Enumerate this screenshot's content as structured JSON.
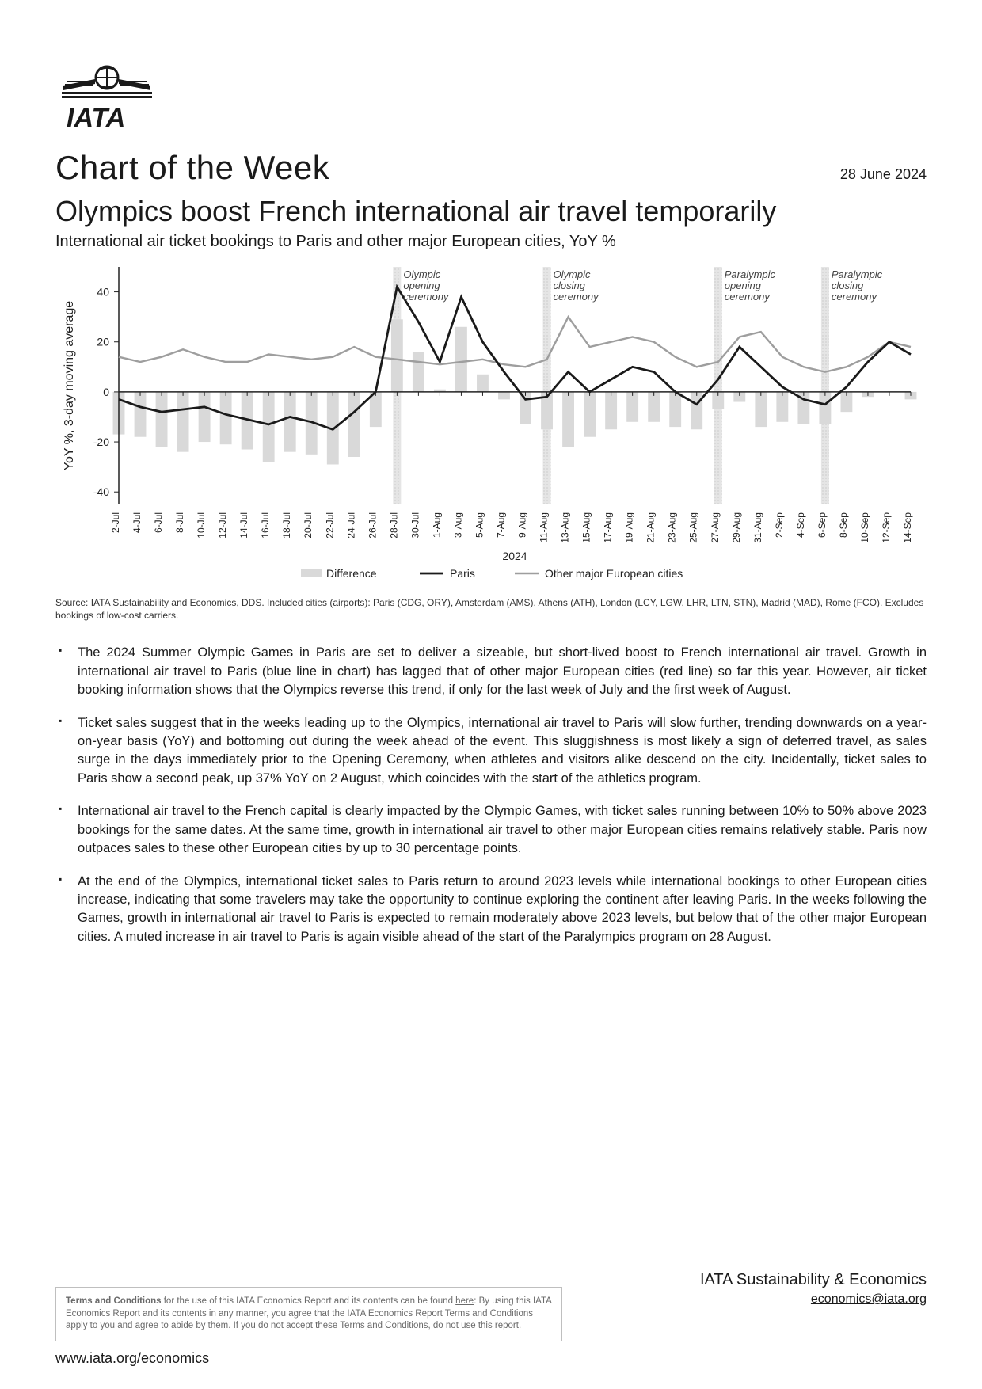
{
  "header": {
    "series_title": "Chart of the Week",
    "date": "28 June 2024",
    "main_title": "Olympics boost French international air travel temporarily",
    "subtitle": "International air ticket bookings to Paris and other major European cities, YoY %"
  },
  "chart": {
    "type": "line-with-bars",
    "ylabel": "YoY %, 3-day moving average",
    "ylim": [
      -45,
      50
    ],
    "yticks": [
      -40,
      -20,
      0,
      20,
      40
    ],
    "x_center_label": "2024",
    "x_dates": [
      "2-Jul",
      "4-Jul",
      "6-Jul",
      "8-Jul",
      "10-Jul",
      "12-Jul",
      "14-Jul",
      "16-Jul",
      "18-Jul",
      "20-Jul",
      "22-Jul",
      "24-Jul",
      "26-Jul",
      "28-Jul",
      "30-Jul",
      "1-Aug",
      "3-Aug",
      "5-Aug",
      "7-Aug",
      "9-Aug",
      "11-Aug",
      "13-Aug",
      "15-Aug",
      "17-Aug",
      "19-Aug",
      "21-Aug",
      "23-Aug",
      "25-Aug",
      "27-Aug",
      "29-Aug",
      "31-Aug",
      "2-Sep",
      "4-Sep",
      "6-Sep",
      "8-Sep",
      "10-Sep",
      "12-Sep",
      "14-Sep"
    ],
    "series": {
      "paris": {
        "label": "Paris",
        "color": "#1a1a1a",
        "stroke_width": 2.8,
        "values": [
          -3,
          -6,
          -8,
          -7,
          -6,
          -9,
          -11,
          -13,
          -10,
          -12,
          -15,
          -8,
          0,
          42,
          28,
          12,
          38,
          20,
          8,
          -3,
          -2,
          8,
          0,
          5,
          10,
          8,
          0,
          -5,
          5,
          18,
          10,
          2,
          -3,
          -5,
          2,
          12,
          20,
          15
        ]
      },
      "other": {
        "label": "Other major European cities",
        "color": "#9e9e9e",
        "stroke_width": 2.4,
        "values": [
          14,
          12,
          14,
          17,
          14,
          12,
          12,
          15,
          14,
          13,
          14,
          18,
          14,
          13,
          12,
          11,
          12,
          13,
          11,
          10,
          13,
          30,
          18,
          20,
          22,
          20,
          14,
          10,
          12,
          22,
          24,
          14,
          10,
          8,
          10,
          14,
          20,
          18
        ]
      },
      "difference": {
        "label": "Difference",
        "color": "#d9d9d9",
        "values": [
          -17,
          -18,
          -22,
          -24,
          -20,
          -21,
          -23,
          -28,
          -24,
          -25,
          -29,
          -26,
          -14,
          29,
          16,
          1,
          26,
          7,
          -3,
          -13,
          -15,
          -22,
          -18,
          -15,
          -12,
          -12,
          -14,
          -15,
          -7,
          -4,
          -14,
          -12,
          -13,
          -13,
          -8,
          -2,
          0,
          -3
        ]
      }
    },
    "events": [
      {
        "label_lines": [
          "Olympic",
          "opening",
          "ceremony"
        ],
        "x_index": 13
      },
      {
        "label_lines": [
          "Olympic",
          "closing",
          "ceremony"
        ],
        "x_index": 20
      },
      {
        "label_lines": [
          "Paralympic",
          "opening",
          "ceremony"
        ],
        "x_index": 28
      },
      {
        "label_lines": [
          "Paralympic",
          "closing",
          "ceremony"
        ],
        "x_index": 33
      }
    ],
    "background_color": "#ffffff",
    "axis_color": "#222222",
    "event_band_fill": "#e5e5e5",
    "event_band_pattern": "dotted",
    "legend_position": "bottom-center"
  },
  "source_note": "Source: IATA Sustainability and Economics, DDS. Included cities (airports): Paris (CDG, ORY), Amsterdam (AMS), Athens (ATH), London (LCY, LGW, LHR, LTN, STN), Madrid (MAD), Rome (FCO). Excludes bookings of low-cost carriers.",
  "bullets": [
    "The 2024 Summer Olympic Games in Paris are set to deliver a sizeable, but short-lived boost to French international air travel. Growth in international air travel to Paris (blue line in chart) has lagged that of other major European cities (red line) so far this year. However, air ticket booking information shows that the Olympics reverse this trend, if only for the last week of July and the first week of August.",
    "Ticket sales suggest that in the weeks leading up to the Olympics, international air travel to Paris will slow further, trending downwards on a year-on-year basis (YoY) and bottoming out during the week ahead of the event. This sluggishness is most likely a sign of deferred travel, as sales surge in the days immediately prior to the Opening Ceremony, when athletes and visitors alike descend on the city. Incidentally, ticket sales to Paris show a second peak, up 37% YoY on 2 August, which coincides with the start of the athletics program.",
    "International air travel to the French capital is clearly impacted by the Olympic Games, with ticket sales running between 10% to 50% above 2023 bookings for the same dates. At the same time, growth in international air travel to other major European cities remains relatively stable. Paris now outpaces sales to these other European cities by up to 30 percentage points.",
    "At the end of the Olympics, international ticket sales to Paris return to around 2023 levels while international bookings to other European cities increase, indicating that some travelers may take the opportunity to continue exploring the continent after leaving Paris. In the weeks following the Games, growth in international air travel to Paris is expected to remain moderately above 2023 levels, but below that of the other major European cities. A muted increase in air travel to Paris is again visible ahead of the start of the Paralympics program on 28 August."
  ],
  "footer": {
    "terms_prefix": "Terms and Conditions",
    "terms_text": " for the use of this IATA Economics Report and its contents can be found ",
    "terms_link": "here",
    "terms_suffix": ": By using this IATA Economics Report and its contents in any manner, you agree that the IATA Economics Report Terms and Conditions apply to you and agree to abide by them. If you do not accept these Terms and Conditions, do not use this report.",
    "dept_name": "IATA Sustainability & Economics",
    "email": "economics@iata.org",
    "url": "www.iata.org/economics"
  }
}
